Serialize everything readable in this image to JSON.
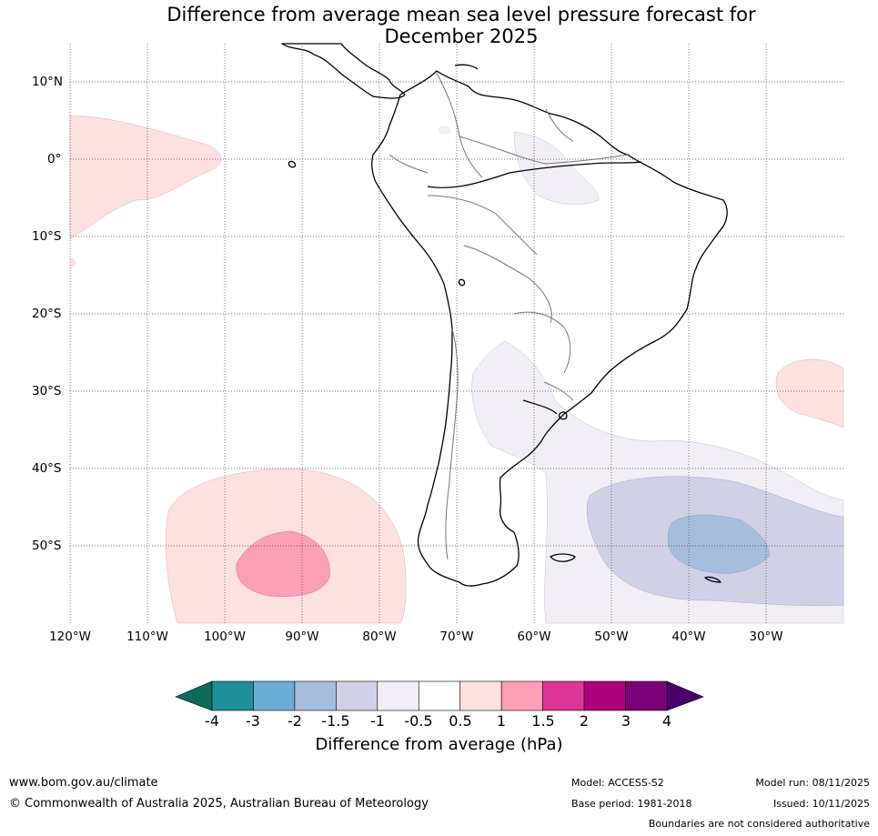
{
  "title": {
    "line1": "Difference from average mean sea level pressure forecast for",
    "line2": "December 2025"
  },
  "map": {
    "region": "South America",
    "lat_labels": [
      "10°N",
      "0°",
      "10°S",
      "20°S",
      "30°S",
      "40°S",
      "50°S"
    ],
    "lon_labels": [
      "120°W",
      "110°W",
      "100°W",
      "90°W",
      "80°W",
      "70°W",
      "60°W",
      "50°W",
      "40°W",
      "30°W"
    ]
  },
  "legend": {
    "ticks": [
      "-4",
      "-3",
      "-2",
      "-1.5",
      "-1",
      "-0.5",
      "0.5",
      "1",
      "1.5",
      "2",
      "3",
      "4"
    ],
    "colors": [
      "#1f8f99",
      "#6aaed6",
      "#a6bddb",
      "#d0d1e6",
      "#f2eef5",
      "#ffffff",
      "#fde0e0",
      "#fa9fb5",
      "#dd3497",
      "#ae017e",
      "#7a0177"
    ],
    "low_extend_color": "#0d6b5e",
    "high_extend_color": "#49006a",
    "label": "Difference from average (hPa)"
  },
  "footer": {
    "website": "www.bom.gov.au/climate",
    "copyright": "© Commonwealth of Australia 2025, Australian Bureau of Meteorology",
    "model": "Model: ACCESS-S2",
    "base_period": "Base period: 1981-2018",
    "model_run": "Model run: 08/11/2025",
    "issued": "Issued: 10/11/2025",
    "disclaimer": "Boundaries are not considered authoritative"
  }
}
